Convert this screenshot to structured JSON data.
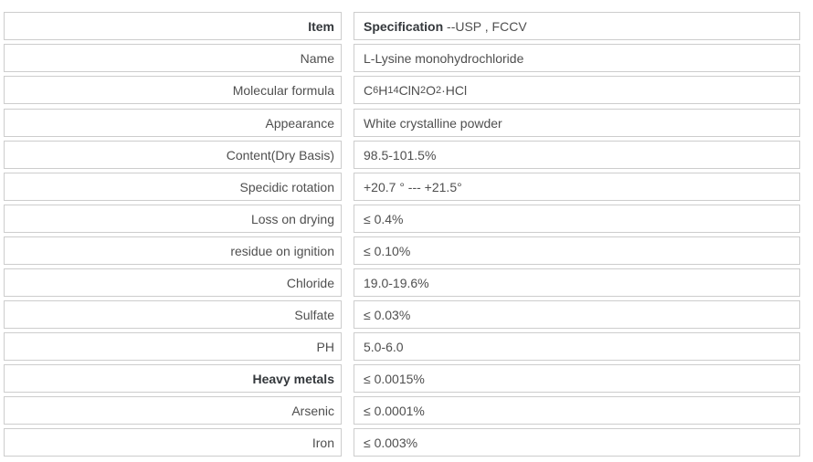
{
  "page": {
    "background_color": "#ffffff",
    "border_color": "#cdcdcd",
    "text_color": "#4f4f4f",
    "bold_text_color": "#34383c"
  },
  "spec_table": {
    "columns": [
      "Item",
      "Specification"
    ],
    "sections": [
      {
        "rows": [
          {
            "label": "Item",
            "label_bold": true,
            "value_runs": [
              {
                "text": "Specification",
                "bold": true
              },
              {
                "text": " --USP , FCCV"
              }
            ]
          },
          {
            "label": "Name",
            "value": "L-Lysine monohydrochloride"
          },
          {
            "label": "Molecular formula",
            "value_runs": [
              {
                "text": "C"
              },
              {
                "text": "6",
                "sub": true
              },
              {
                "text": "H"
              },
              {
                "text": "14",
                "sub": true
              },
              {
                "text": "ClN"
              },
              {
                "text": "2",
                "sub": true
              },
              {
                "text": "O"
              },
              {
                "text": "2",
                "sub": true
              },
              {
                "text": "·HCl"
              }
            ]
          }
        ]
      },
      {
        "rows": [
          {
            "label": "Appearance",
            "value": "White crystalline powder"
          },
          {
            "label": "Content(Dry Basis)",
            "value": "98.5-101.5%"
          },
          {
            "label": "Specidic rotation",
            "value": "+20.7 ° --- +21.5°"
          },
          {
            "label": "Loss on drying",
            "value": "≤ 0.4%"
          },
          {
            "label": "residue on ignition",
            "value": "≤ 0.10%"
          },
          {
            "label": "Chloride",
            "value": "19.0-19.6%"
          },
          {
            "label": "Sulfate",
            "value": "≤ 0.03%"
          },
          {
            "label": "PH",
            "value": "5.0-6.0"
          },
          {
            "label": "Heavy metals",
            "label_bold": true,
            "value": "≤ 0.0015%"
          },
          {
            "label": "Arsenic",
            "value": "≤ 0.0001%"
          },
          {
            "label": "Iron",
            "value": "≤ 0.003%"
          }
        ]
      }
    ]
  }
}
